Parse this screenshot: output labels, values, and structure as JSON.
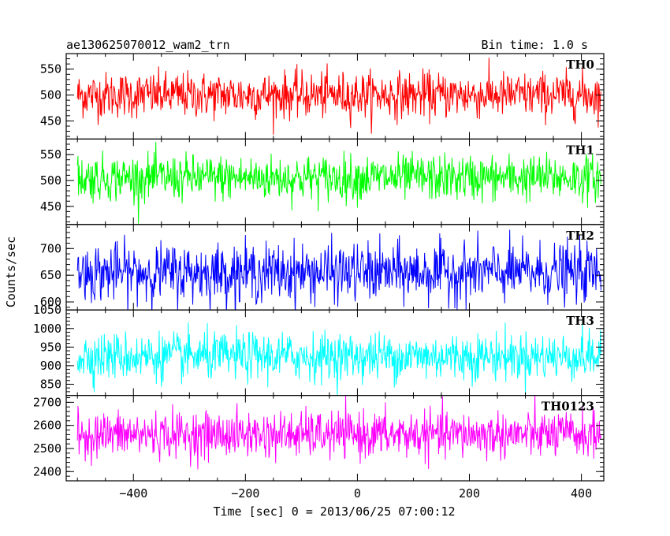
{
  "header": {
    "title": "ae130625070012_wam2_trn",
    "bin_time": "Bin time: 1.0 s"
  },
  "chart_data": {
    "type": "line",
    "ylabel": "Counts/sec",
    "xlabel": "Time [sec] 0 = 2013/06/25 07:00:12",
    "xlim": [
      -520,
      440
    ],
    "x_tick_values": [
      -400,
      -200,
      0,
      200,
      400
    ],
    "x_tick_labels": [
      "−400",
      "−200",
      "0",
      "200",
      "400"
    ],
    "data_x_range": [
      -500,
      435
    ],
    "grid": false,
    "panels": [
      {
        "name": "TH0",
        "color": "#ff0000",
        "ylim": [
          415,
          580
        ],
        "ticks": [
          450,
          500,
          550
        ],
        "mean": 500,
        "noise_sd": 22
      },
      {
        "name": "TH1",
        "color": "#00ff00",
        "ylim": [
          415,
          580
        ],
        "ticks": [
          450,
          500,
          550
        ],
        "mean": 505,
        "noise_sd": 22
      },
      {
        "name": "TH2",
        "color": "#0000ff",
        "ylim": [
          585,
          745
        ],
        "ticks": [
          600,
          650,
          700
        ],
        "mean": 655,
        "noise_sd": 27
      },
      {
        "name": "TH3",
        "color": "#00ffff",
        "ylim": [
          820,
          1050
        ],
        "ticks": [
          850,
          900,
          950,
          1000,
          1050
        ],
        "mean": 925,
        "noise_sd": 32
      },
      {
        "name": "TH0123",
        "color": "#ff00ff",
        "ylim": [
          2360,
          2730
        ],
        "ticks": [
          2400,
          2500,
          2600,
          2700
        ],
        "mean": 2560,
        "noise_sd": 50
      }
    ]
  }
}
